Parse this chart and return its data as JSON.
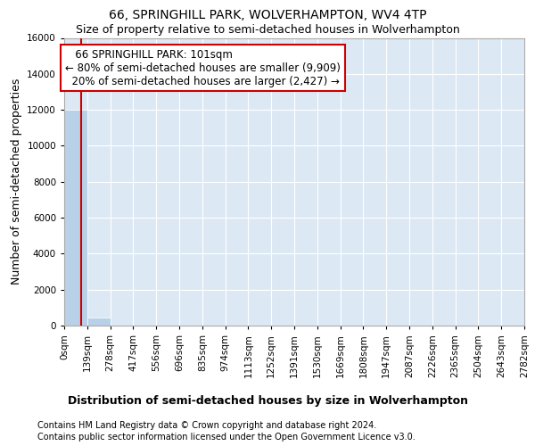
{
  "title": "66, SPRINGHILL PARK, WOLVERHAMPTON, WV4 4TP",
  "subtitle": "Size of property relative to semi-detached houses in Wolverhampton",
  "xlabel_bottom": "Distribution of semi-detached houses by size in Wolverhampton",
  "ylabel": "Number of semi-detached properties",
  "footnote1": "Contains HM Land Registry data © Crown copyright and database right 2024.",
  "footnote2": "Contains public sector information licensed under the Open Government Licence v3.0.",
  "bar_edges": [
    0,
    139,
    278,
    417,
    556,
    696,
    835,
    974,
    1113,
    1252,
    1391,
    1530,
    1669,
    1808,
    1947,
    2087,
    2226,
    2365,
    2504,
    2643,
    2782
  ],
  "bar_heights": [
    12000,
    450,
    10,
    5,
    2,
    1,
    1,
    0,
    0,
    0,
    0,
    0,
    0,
    0,
    0,
    0,
    0,
    0,
    0,
    0
  ],
  "bar_color": "#b8d0e8",
  "bar_edge_color": "#ffffff",
  "bg_color": "#dce9f5",
  "grid_color": "#ffffff",
  "property_size": 101,
  "property_label": "66 SPRINGHILL PARK: 101sqm",
  "pct_smaller": 80,
  "n_smaller": 9909,
  "pct_larger": 20,
  "n_larger": 2427,
  "annotation_box_color": "#cc0000",
  "vline_color": "#cc0000",
  "ylim": [
    0,
    16000
  ],
  "yticks": [
    0,
    2000,
    4000,
    6000,
    8000,
    10000,
    12000,
    14000,
    16000
  ],
  "title_fontsize": 10,
  "subtitle_fontsize": 9,
  "axis_label_fontsize": 9,
  "tick_fontsize": 7.5,
  "annotation_fontsize": 8.5,
  "footnote_fontsize": 7
}
